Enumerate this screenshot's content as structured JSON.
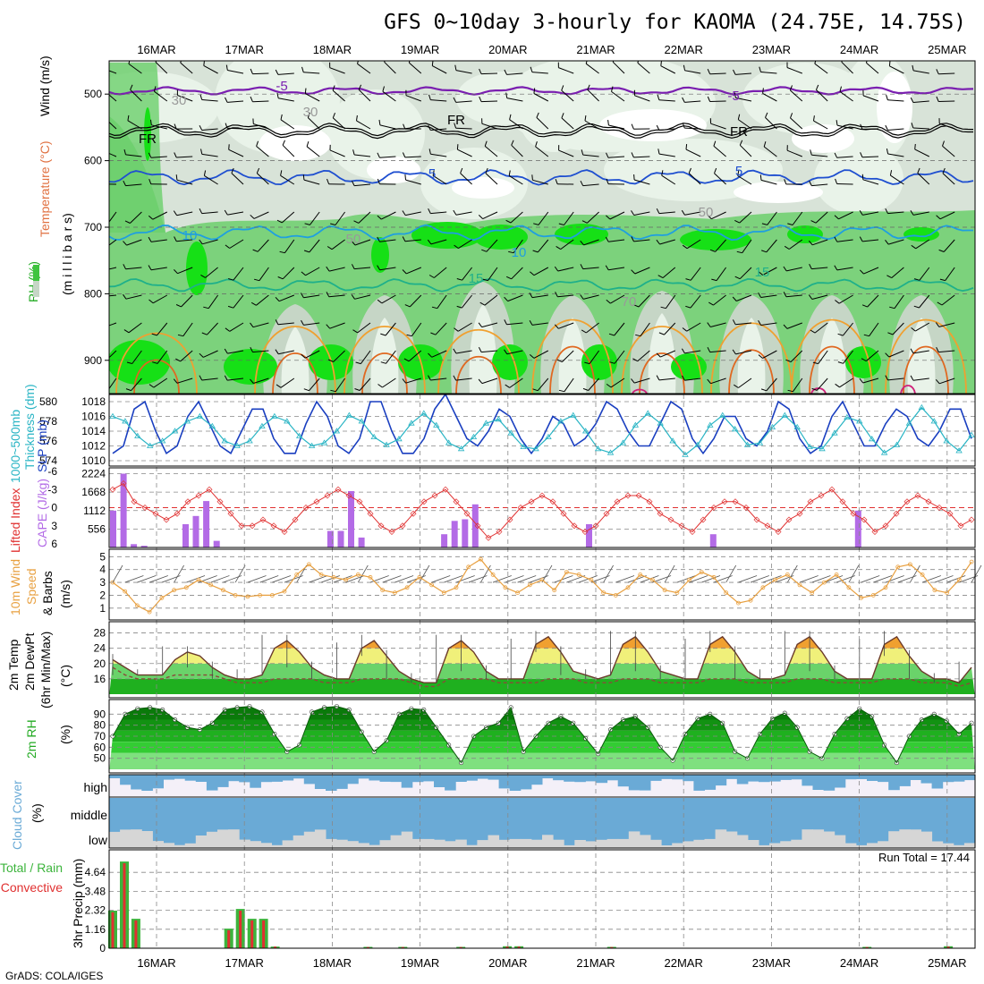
{
  "title": "GFS 0~10day 3-hourly for KAOMA (24.75E, 14.75S)",
  "credit": "GrADS: COLA/IGES",
  "days": [
    "16MAR",
    "17MAR",
    "18MAR",
    "19MAR",
    "20MAR",
    "21MAR",
    "22MAR",
    "23MAR",
    "24MAR",
    "25MAR"
  ],
  "colors": {
    "rh_light": "#e9f3e9",
    "rh_mid": "#c6d6c6",
    "rh_green": "#6ccf6c",
    "rh_bright": "#16e016",
    "t_minus5": "#7a1fb0",
    "t_5": "#1f4fd0",
    "t_10": "#1f9fe0",
    "t_15": "#1fb08a",
    "t_20": "#f0a030",
    "t_25": "#e06820",
    "slp": "#1a3fc0",
    "thickness": "#28b4c4",
    "li": "#e03030",
    "cape": "#b36be6",
    "wind": "#e8a040",
    "cloud": "#6aaad6",
    "precip_total": "#3cb43c",
    "precip_conv": "#e03030"
  },
  "panels": {
    "upper": {
      "label_rh": "RH (%)",
      "label_temp": "Temperature (°C)",
      "label_wind": "Wind (m/s)",
      "label_p": "(m i l l i b a r s)",
      "yticks": [
        "500",
        "600",
        "700",
        "800",
        "900"
      ],
      "contour_labels": [
        {
          "text": "-5",
          "color": "#7a1fb0"
        },
        {
          "text": "-5",
          "color": "#7a1fb0"
        },
        {
          "text": "FR",
          "color": "#000000"
        },
        {
          "text": "FR",
          "color": "#000000"
        },
        {
          "text": "FR",
          "color": "#000000"
        },
        {
          "text": "5",
          "color": "#1f4fd0"
        },
        {
          "text": "5",
          "color": "#1f4fd0"
        },
        {
          "text": "10",
          "color": "#1f9fe0"
        },
        {
          "text": "10",
          "color": "#1f9fe0"
        },
        {
          "text": "15",
          "color": "#1fb08a"
        },
        {
          "text": "15",
          "color": "#1fb08a"
        },
        {
          "text": "30",
          "color": "#999999"
        },
        {
          "text": "50",
          "color": "#999999"
        },
        {
          "text": "30",
          "color": "#999999"
        },
        {
          "text": "50",
          "color": "#999999"
        },
        {
          "text": "70",
          "color": "#999999"
        }
      ]
    },
    "thickness_slp": {
      "label_thick": "1000~500mb",
      "label_thick2": "Thickness (dm)",
      "label_slp": "SLP (mb)",
      "left_ticks": [
        "580",
        "578",
        "576",
        "574"
      ],
      "right_ticks": [
        "1018",
        "1016",
        "1014",
        "1012",
        "1010"
      ]
    },
    "li_cape": {
      "label_li": "Lifted Index",
      "label_cape": "CAPE (J/kg)",
      "left_ticks": [
        "-6",
        "-3",
        "0",
        "3",
        "6"
      ],
      "right_ticks": [
        "2224",
        "1668",
        "1112",
        "556"
      ]
    },
    "wind10": {
      "label1": "10m Wind",
      "label2": "Speed",
      "label3": "& Barbs",
      "unit": "(m/s)",
      "ticks": [
        "5",
        "4",
        "3",
        "2",
        "1"
      ]
    },
    "temp2m": {
      "label1": "2m Temp",
      "label2": "2m DewPt",
      "label3": "(6hr Min/Max)",
      "unit": "(°C)",
      "ticks": [
        "28",
        "24",
        "20",
        "16"
      ]
    },
    "rh2m": {
      "label": "2m RH",
      "unit": "(%)",
      "ticks": [
        "90",
        "80",
        "70",
        "60",
        "50"
      ]
    },
    "cloud": {
      "label": "Cloud Cover",
      "unit": "(%)",
      "levels": [
        "high",
        "middle",
        "low"
      ]
    },
    "precip": {
      "label_total": "Total / Rain",
      "label_conv": "Convective",
      "unit": "3hr Precip (mm)",
      "ticks": [
        "4.64",
        "3.48",
        "2.32",
        "1.16",
        "0"
      ],
      "run_total": "Run Total = 17.44"
    }
  },
  "chart_data": [
    {
      "type": "heatmap",
      "title": "GFS 0~10day 3-hourly for KAOMA (24.75E, 14.75S)",
      "ylabel": "millibars",
      "ylim": [
        950,
        450
      ],
      "x_days": [
        "16MAR",
        "17MAR",
        "18MAR",
        "19MAR",
        "20MAR",
        "21MAR",
        "22MAR",
        "23MAR",
        "24MAR",
        "25MAR"
      ],
      "contours_temperature_C": [
        -5,
        0,
        5,
        10,
        15,
        20,
        25
      ],
      "approx_isotherm_levels_mb": {
        "-5": 495,
        "FR": 555,
        "5": 620,
        "10": 700,
        "15": 780
      },
      "rh_shading_percent": [
        30,
        50,
        70,
        90
      ]
    },
    {
      "type": "line",
      "series": [
        {
          "name": "SLP (mb)",
          "values": [
            1011,
            1012,
            1017,
            1018,
            1014,
            1011,
            1012,
            1016,
            1018,
            1015,
            1012,
            1011,
            1014,
            1017,
            1017,
            1013,
            1011,
            1011,
            1015,
            1018,
            1016,
            1012,
            1011,
            1013,
            1018,
            1018,
            1014,
            1011,
            1011,
            1013,
            1017,
            1019,
            1016,
            1013,
            1012,
            1014,
            1017,
            1016,
            1013,
            1011,
            1013,
            1016,
            1015,
            1012,
            1013,
            1015,
            1018,
            1017,
            1014,
            1012,
            1012,
            1015,
            1018,
            1017,
            1013,
            1011,
            1013,
            1016,
            1016,
            1013,
            1012,
            1014,
            1018,
            1017,
            1013,
            1011,
            1012,
            1016,
            1018,
            1015,
            1012,
            1012,
            1015,
            1017,
            1016,
            1013,
            1012,
            1014,
            1017,
            1017,
            1013
          ]
        },
        {
          "name": "1000~500mb Thickness (dm)",
          "values": [
            578.5,
            578,
            576.5,
            575.5,
            576,
            577,
            578,
            578.5,
            577.5,
            576,
            575.5,
            576,
            577.5,
            578.5,
            578,
            576.5,
            575.5,
            575.8,
            577,
            578.6,
            578,
            576.4,
            575.6,
            576.2,
            577.8,
            578.8,
            577.6,
            575.8,
            575.2,
            576.4,
            577.8,
            578.2,
            576.8,
            575.4,
            575.2,
            576.4,
            578,
            578.6,
            577,
            575.2,
            574.8,
            575.8,
            577.6,
            578.8,
            577.8,
            576,
            574.6,
            575.6,
            577.6,
            578.6,
            577.2,
            575.6,
            575.8,
            577.4,
            578.6,
            577.4,
            575.4,
            575.2,
            576.8,
            578.4,
            578,
            576.2,
            574.8,
            575.6,
            577.8,
            579.4,
            578,
            576,
            575,
            576.6
          ]
        }
      ]
    },
    {
      "type": "bar",
      "series": [
        {
          "name": "CAPE (J/kg)",
          "values": [
            1112,
            2224,
            100,
            50,
            0,
            0,
            0,
            700,
            950,
            1400,
            200,
            0,
            0,
            0,
            0,
            0,
            0,
            0,
            0,
            0,
            0,
            500,
            500,
            1700,
            300,
            0,
            0,
            0,
            0,
            0,
            0,
            0,
            400,
            800,
            850,
            1300,
            0,
            0,
            0,
            0,
            0,
            0,
            0,
            0,
            0,
            0,
            700,
            0,
            0,
            0,
            0,
            0,
            0,
            0,
            0,
            0,
            0,
            0,
            400,
            0,
            0,
            0,
            0,
            0,
            0,
            0,
            0,
            0,
            0,
            0,
            0,
            0,
            1112,
            0,
            0,
            0,
            0,
            0,
            0,
            0,
            0,
            0,
            0,
            0
          ]
        },
        {
          "name": "Lifted Index",
          "values": [
            -3,
            -4,
            -1,
            0,
            1,
            2,
            1,
            -1,
            -2,
            -3,
            -1,
            1,
            3,
            3,
            2,
            3,
            4,
            2,
            0,
            -1,
            -2,
            -3,
            -2,
            -1,
            1,
            3,
            4,
            3,
            1,
            -1,
            -2,
            -3,
            -1,
            1,
            3,
            5,
            4,
            2,
            0,
            -1,
            -2,
            -1,
            1,
            3,
            4,
            3,
            1,
            -1,
            -2,
            -2,
            -1,
            1,
            2,
            3,
            4,
            2,
            0,
            -1,
            -1,
            0,
            2,
            3,
            4,
            2,
            1,
            -1,
            -2,
            -3,
            -1,
            1,
            2,
            4,
            3,
            1,
            -1,
            -2,
            -1,
            0,
            1,
            3,
            2
          ]
        }
      ]
    },
    {
      "type": "line",
      "series": [
        {
          "name": "10m Wind Speed (m/s)",
          "values": [
            3,
            2.3,
            1.2,
            0.7,
            1.8,
            2.4,
            2.6,
            3.2,
            2.8,
            2.4,
            2,
            1.9,
            2,
            2,
            2.3,
            3.6,
            4.4,
            3.6,
            3.4,
            3.2,
            3.6,
            3.4,
            2.4,
            2.2,
            2.6,
            3.4,
            2.8,
            2.2,
            2.6,
            4.2,
            4.8,
            3.6,
            2.6,
            2.2,
            2.8,
            3.2,
            2.4,
            3.8,
            3.6,
            3.2,
            2.2,
            2,
            2.6,
            3.6,
            3.2,
            2.4,
            2.2,
            3.2,
            3.8,
            3.4,
            2.2,
            1.4,
            1.6,
            2.6,
            3.2,
            3.6,
            2.8,
            2.2,
            3,
            3.6,
            2.6,
            1.8,
            2,
            2.6,
            4.2,
            4.4,
            3.6,
            2.4,
            2.2,
            3.2,
            4.6
          ]
        }
      ]
    },
    {
      "type": "area",
      "series": [
        {
          "name": "2m Temp (°C)",
          "values": [
            21,
            19,
            17,
            17,
            17,
            21,
            23,
            22,
            19,
            17,
            16,
            16,
            17,
            24,
            26,
            23,
            19,
            17,
            16,
            16,
            24,
            26,
            22,
            18,
            16,
            15,
            15,
            24,
            26,
            23,
            18,
            16,
            16,
            16,
            25,
            27,
            23,
            18,
            17,
            16,
            17,
            25,
            27,
            23,
            18,
            17,
            16,
            16,
            25,
            27,
            23,
            18,
            16,
            16,
            17,
            25,
            27,
            23,
            18,
            16,
            16,
            16,
            25,
            27,
            22,
            18,
            16,
            16,
            15,
            19
          ]
        },
        {
          "name": "2m DewPt (°C)",
          "values": [
            19,
            17,
            16,
            16,
            16,
            17,
            17,
            17,
            17,
            16,
            15,
            15,
            15,
            16,
            16,
            16,
            16,
            15,
            15,
            15,
            16,
            16,
            16,
            16,
            15,
            14,
            14,
            16,
            16,
            16,
            16,
            15,
            15,
            15,
            15,
            16,
            16,
            16,
            15,
            15,
            15,
            16,
            16,
            16,
            15,
            15,
            15,
            15,
            16,
            16,
            16,
            15,
            15,
            15,
            15,
            16,
            16,
            16,
            15,
            15,
            15,
            15,
            16,
            16,
            16,
            15,
            15,
            15,
            14,
            15
          ]
        }
      ]
    },
    {
      "type": "area",
      "series": [
        {
          "name": "2m RH (%)",
          "values": [
            70,
            90,
            95,
            96,
            94,
            85,
            78,
            76,
            82,
            94,
            96,
            97,
            92,
            72,
            56,
            62,
            92,
            96,
            97,
            94,
            74,
            56,
            66,
            90,
            95,
            94,
            78,
            62,
            46,
            70,
            78,
            82,
            96,
            56,
            70,
            82,
            88,
            82,
            68,
            54,
            76,
            85,
            88,
            78,
            60,
            48,
            72,
            86,
            90,
            82,
            56,
            50,
            72,
            86,
            91,
            78,
            56,
            50,
            72,
            86,
            95,
            88,
            62,
            46,
            70,
            85,
            90,
            84,
            72,
            82
          ]
        }
      ]
    },
    {
      "type": "bar",
      "series": [
        {
          "name": "Total / Rain (mm)",
          "values": [
            2.3,
            5.3,
            1.8,
            0,
            0,
            0,
            0,
            0,
            0,
            0,
            1.2,
            2.4,
            1.8,
            1.8,
            0.1,
            0,
            0,
            0,
            0,
            0,
            0,
            0,
            0.08,
            0,
            0,
            0.08,
            0,
            0,
            0,
            0,
            0.08,
            0,
            0,
            0,
            0.12,
            0.12,
            0,
            0,
            0,
            0,
            0,
            0,
            0,
            0.08,
            0,
            0,
            0,
            0,
            0,
            0,
            0,
            0,
            0,
            0,
            0,
            0,
            0,
            0,
            0,
            0,
            0,
            0,
            0,
            0,
            0,
            0.08,
            0,
            0,
            0,
            0,
            0,
            0,
            0.12,
            0,
            0
          ]
        },
        {
          "name": "Convective (mm)",
          "values": [
            2.2,
            5.2,
            1.7,
            0,
            0,
            0,
            0,
            0,
            0,
            0,
            1.1,
            2.3,
            1.7,
            1.7,
            0.1,
            0,
            0,
            0,
            0,
            0,
            0,
            0,
            0.07,
            0,
            0,
            0.07,
            0,
            0,
            0,
            0,
            0.07,
            0,
            0,
            0,
            0.1,
            0.1,
            0,
            0,
            0,
            0,
            0,
            0,
            0,
            0.07,
            0,
            0,
            0,
            0,
            0,
            0,
            0,
            0,
            0,
            0,
            0,
            0,
            0,
            0,
            0,
            0,
            0,
            0,
            0,
            0,
            0,
            0.07,
            0,
            0,
            0,
            0,
            0,
            0,
            0.1,
            0,
            0
          ]
        }
      ]
    }
  ]
}
